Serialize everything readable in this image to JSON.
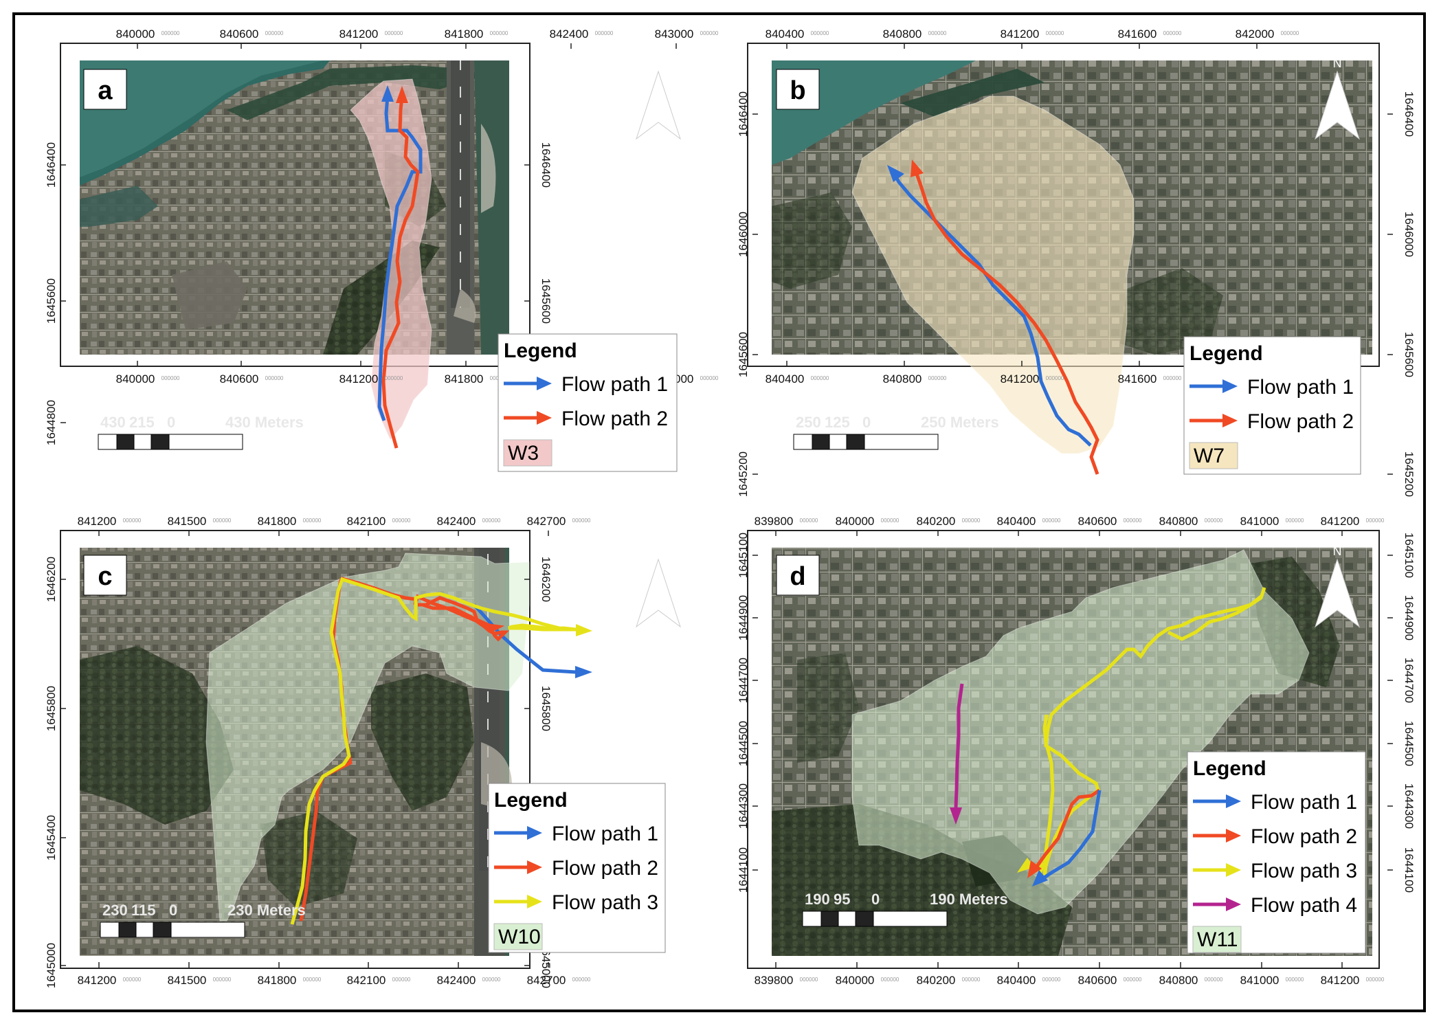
{
  "colors": {
    "flow_path_1": "#2f6fd6",
    "flow_path_2": "#f04a24",
    "flow_path_3": "#e6e21a",
    "flow_path_4": "#b4248f",
    "W3": "#f3c8c8",
    "W7": "#f6e6bf",
    "W10": "#d9efd2",
    "W11": "#d9efd2"
  },
  "panels": [
    {
      "id": "a",
      "label": "a",
      "north": "N",
      "x_ticks": [
        "840000",
        "840600",
        "841200",
        "841800",
        "842400",
        "843000"
      ],
      "y_ticks": [
        "1646400",
        "1645600",
        "1644800"
      ],
      "tick_suffix": "000000",
      "scale": [
        "430",
        "215",
        "0",
        "430 Meters"
      ],
      "legend_title": "Legend",
      "legend": [
        {
          "label": "Flow path 1",
          "color": "#2f6fd6",
          "kind": "arrow"
        },
        {
          "label": "Flow path 2",
          "color": "#f04a24",
          "kind": "arrow"
        },
        {
          "label": "W3",
          "color": "#f3c8c8",
          "kind": "box"
        }
      ]
    },
    {
      "id": "b",
      "label": "b",
      "north": "N",
      "x_ticks": [
        "840400",
        "840800",
        "841200",
        "841600",
        "842000"
      ],
      "y_ticks": [
        "1646400",
        "1646000",
        "1645600",
        "1645200"
      ],
      "tick_suffix": "000000",
      "scale": [
        "250",
        "125",
        "0",
        "250 Meters"
      ],
      "legend_title": "Legend",
      "legend": [
        {
          "label": "Flow path 1",
          "color": "#2f6fd6",
          "kind": "arrow"
        },
        {
          "label": "Flow path 2",
          "color": "#f04a24",
          "kind": "arrow"
        },
        {
          "label": "W7",
          "color": "#f6e6bf",
          "kind": "box"
        }
      ]
    },
    {
      "id": "c",
      "label": "c",
      "north": "N",
      "x_ticks": [
        "841200",
        "841500",
        "841800",
        "842100",
        "842400",
        "842700"
      ],
      "y_ticks": [
        "1646200",
        "1645800",
        "1645400",
        "1645000"
      ],
      "tick_suffix": "000000",
      "scale": [
        "230",
        "115",
        "0",
        "230 Meters"
      ],
      "legend_title": "Legend",
      "legend": [
        {
          "label": "Flow path 1",
          "color": "#2f6fd6",
          "kind": "arrow"
        },
        {
          "label": "Flow path 2",
          "color": "#f04a24",
          "kind": "arrow"
        },
        {
          "label": "Flow path 3",
          "color": "#e6e21a",
          "kind": "arrow"
        },
        {
          "label": "W10",
          "color": "#d9efd2",
          "kind": "box"
        }
      ]
    },
    {
      "id": "d",
      "label": "d",
      "north": "N",
      "x_ticks": [
        "839800",
        "840000",
        "840200",
        "840400",
        "840600",
        "840800",
        "841000",
        "841200"
      ],
      "y_ticks": [
        "1645100",
        "1644900",
        "1644700",
        "1644500",
        "1644300",
        "1644100"
      ],
      "tick_suffix": "000000",
      "scale": [
        "190",
        "95",
        "0",
        "190 Meters"
      ],
      "legend_title": "Legend",
      "legend": [
        {
          "label": "Flow path 1",
          "color": "#2f6fd6",
          "kind": "arrow"
        },
        {
          "label": "Flow path 2",
          "color": "#f04a24",
          "kind": "arrow"
        },
        {
          "label": "Flow path 3",
          "color": "#e6e21a",
          "kind": "arrow"
        },
        {
          "label": "Flow path 4",
          "color": "#b4248f",
          "kind": "arrow"
        },
        {
          "label": "W11",
          "color": "#d9efd2",
          "kind": "box"
        }
      ]
    }
  ]
}
